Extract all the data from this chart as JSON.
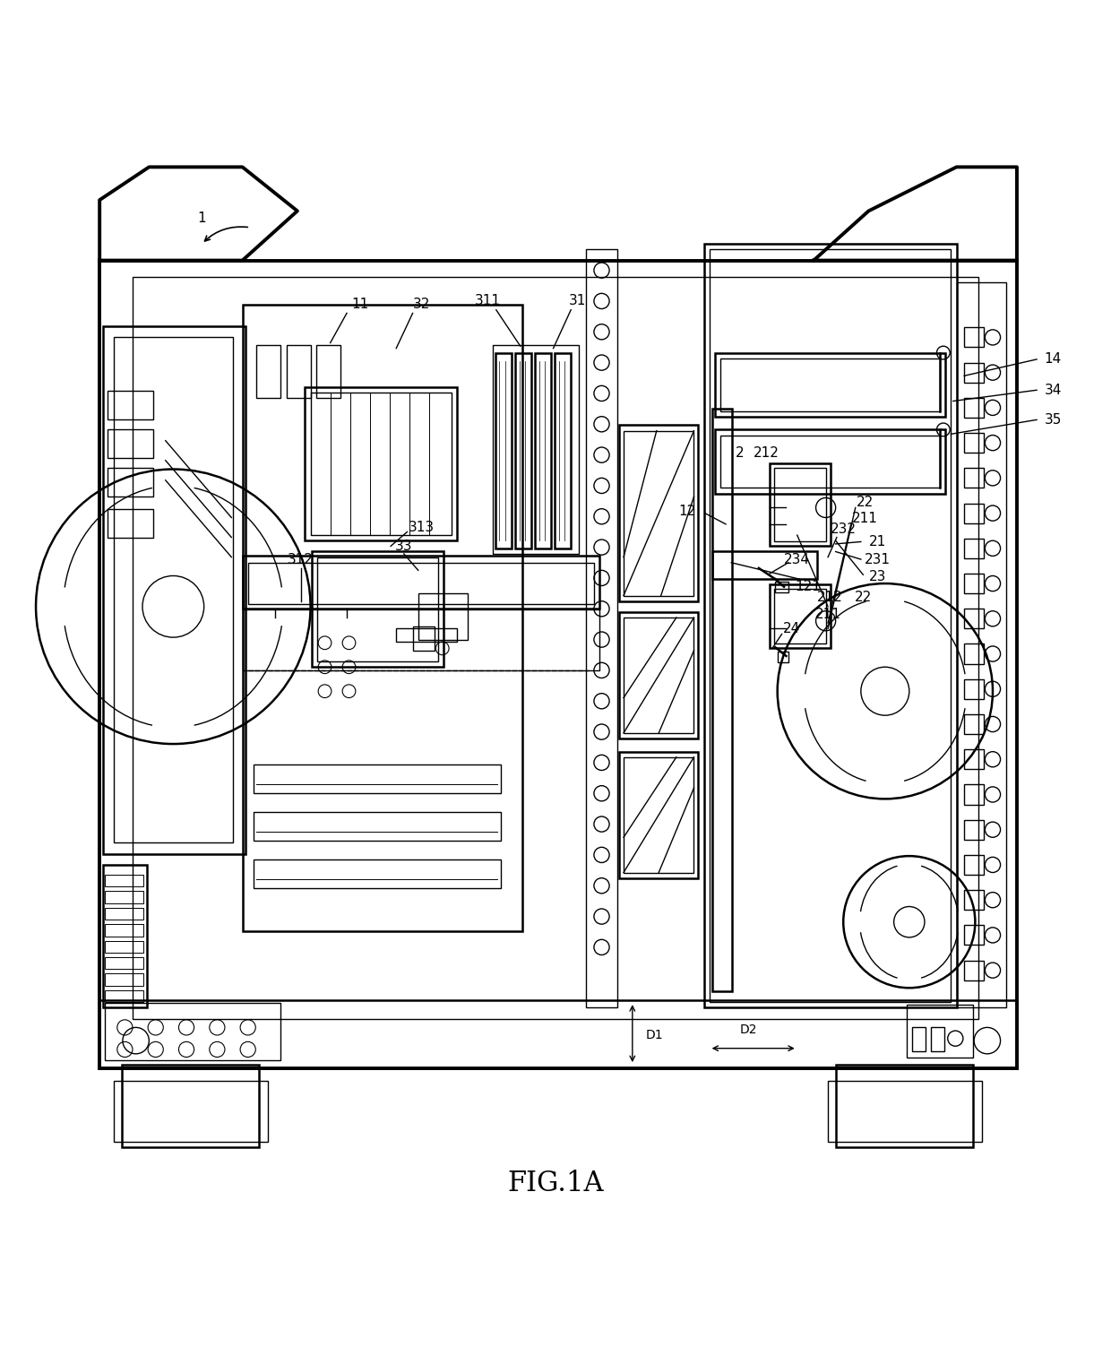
{
  "title": "FIG.1A",
  "title_fontsize": 22,
  "background_color": "#ffffff",
  "line_color": "#000000",
  "fig_width": 12.4,
  "fig_height": 15.13
}
